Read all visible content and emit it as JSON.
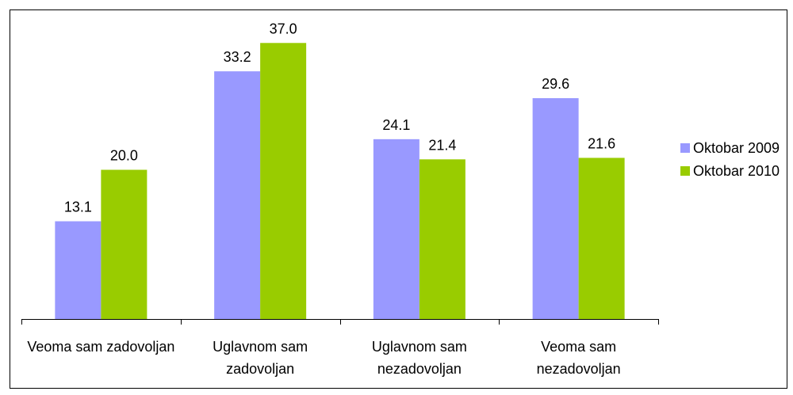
{
  "chart_data": {
    "type": "bar",
    "categories": [
      "Veoma sam zadovoljan",
      "Uglavnom sam zadovoljan",
      "Uglavnom sam nezadovoljan",
      "Veoma sam nezadovoljan"
    ],
    "series": [
      {
        "name": "Oktobar 2009",
        "color": "#9999ff",
        "values": [
          13.1,
          33.2,
          24.1,
          29.6
        ],
        "value_labels": [
          "13.1",
          "33.2",
          "24.1",
          "29.6"
        ]
      },
      {
        "name": "Oktobar 2010",
        "color": "#99cc00",
        "values": [
          20,
          37,
          21.4,
          21.6
        ],
        "value_labels": [
          "20.0",
          "37.0",
          "21.4",
          "21.6"
        ]
      }
    ],
    "ylim": [
      0,
      40
    ],
    "legend": "right"
  }
}
